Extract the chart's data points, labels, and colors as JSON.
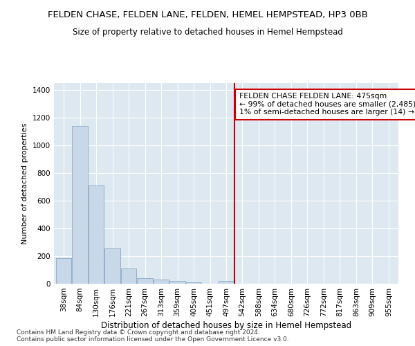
{
  "title": "FELDEN CHASE, FELDEN LANE, FELDEN, HEMEL HEMPSTEAD, HP3 0BB",
  "subtitle": "Size of property relative to detached houses in Hemel Hempstead",
  "xlabel": "Distribution of detached houses by size in Hemel Hempstead",
  "ylabel": "Number of detached properties",
  "footnote": "Contains HM Land Registry data © Crown copyright and database right 2024.\nContains public sector information licensed under the Open Government Licence v3.0.",
  "categories": [
    "38sqm",
    "84sqm",
    "130sqm",
    "176sqm",
    "221sqm",
    "267sqm",
    "313sqm",
    "359sqm",
    "405sqm",
    "451sqm",
    "497sqm",
    "542sqm",
    "588sqm",
    "634sqm",
    "680sqm",
    "726sqm",
    "772sqm",
    "817sqm",
    "863sqm",
    "909sqm",
    "955sqm"
  ],
  "values": [
    185,
    1140,
    710,
    255,
    110,
    38,
    30,
    18,
    8,
    2,
    20,
    0,
    0,
    0,
    0,
    0,
    0,
    0,
    0,
    0,
    0
  ],
  "bar_color": "#c8d8e8",
  "bar_edge_color": "#7a9cbf",
  "vline_index": 10.5,
  "annotation_text": "FELDEN CHASE FELDEN LANE: 475sqm\n← 99% of detached houses are smaller (2,485)\n1% of semi-detached houses are larger (14) →",
  "annotation_box_color": "#ffffff",
  "annotation_box_edge": "#cc0000",
  "vline_color": "#cc0000",
  "ylim": [
    0,
    1450
  ],
  "yticks": [
    0,
    200,
    400,
    600,
    800,
    1000,
    1200,
    1400
  ],
  "bg_color": "#dde8f0",
  "title_fontsize": 9.5,
  "subtitle_fontsize": 8.5,
  "xlabel_fontsize": 8.5,
  "ylabel_fontsize": 8,
  "tick_fontsize": 7.5,
  "footnote_fontsize": 6.5
}
